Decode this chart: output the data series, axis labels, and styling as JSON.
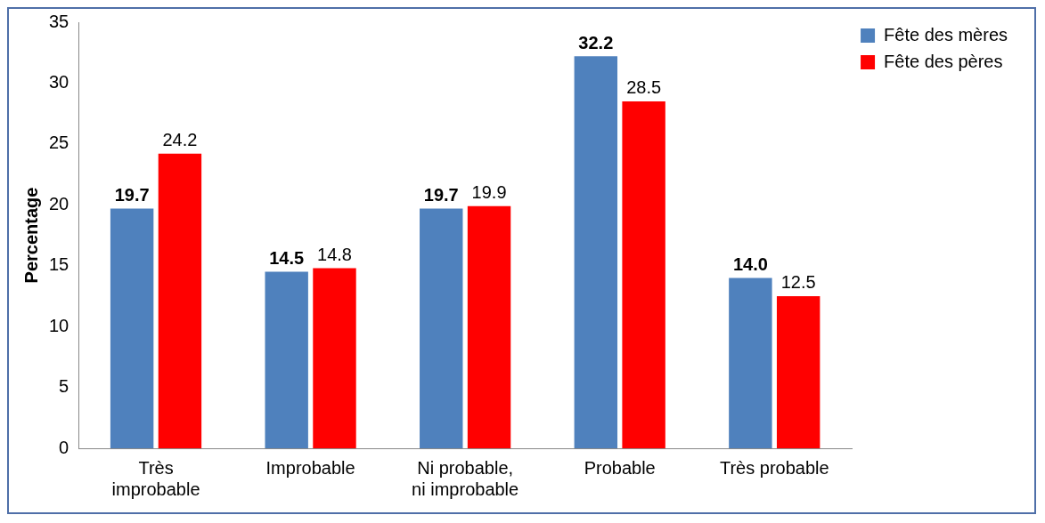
{
  "chart_data": {
    "type": "bar",
    "ylabel": "Percentage",
    "categories": [
      "Très improbable",
      "Improbable",
      "Ni probable, ni improbable",
      "Probable",
      "Très probable"
    ],
    "series": [
      {
        "name": "Fête des mères",
        "color": "#4f81bd",
        "values": [
          19.7,
          14.5,
          19.7,
          32.2,
          14.0
        ],
        "value_labels": [
          "19.7",
          "14.5",
          "19.7",
          "32.2",
          "14.0"
        ]
      },
      {
        "name": "Fête des pères",
        "color": "#ff0000",
        "values": [
          24.2,
          14.8,
          19.9,
          28.5,
          12.5
        ],
        "value_labels": [
          "24.2",
          "14.8",
          "19.9",
          "28.5",
          "12.5"
        ]
      }
    ],
    "ylim": [
      0,
      35
    ],
    "yticks": [
      0,
      5,
      10,
      15,
      20,
      25,
      30,
      35
    ],
    "grid": false,
    "legend": "top right"
  }
}
